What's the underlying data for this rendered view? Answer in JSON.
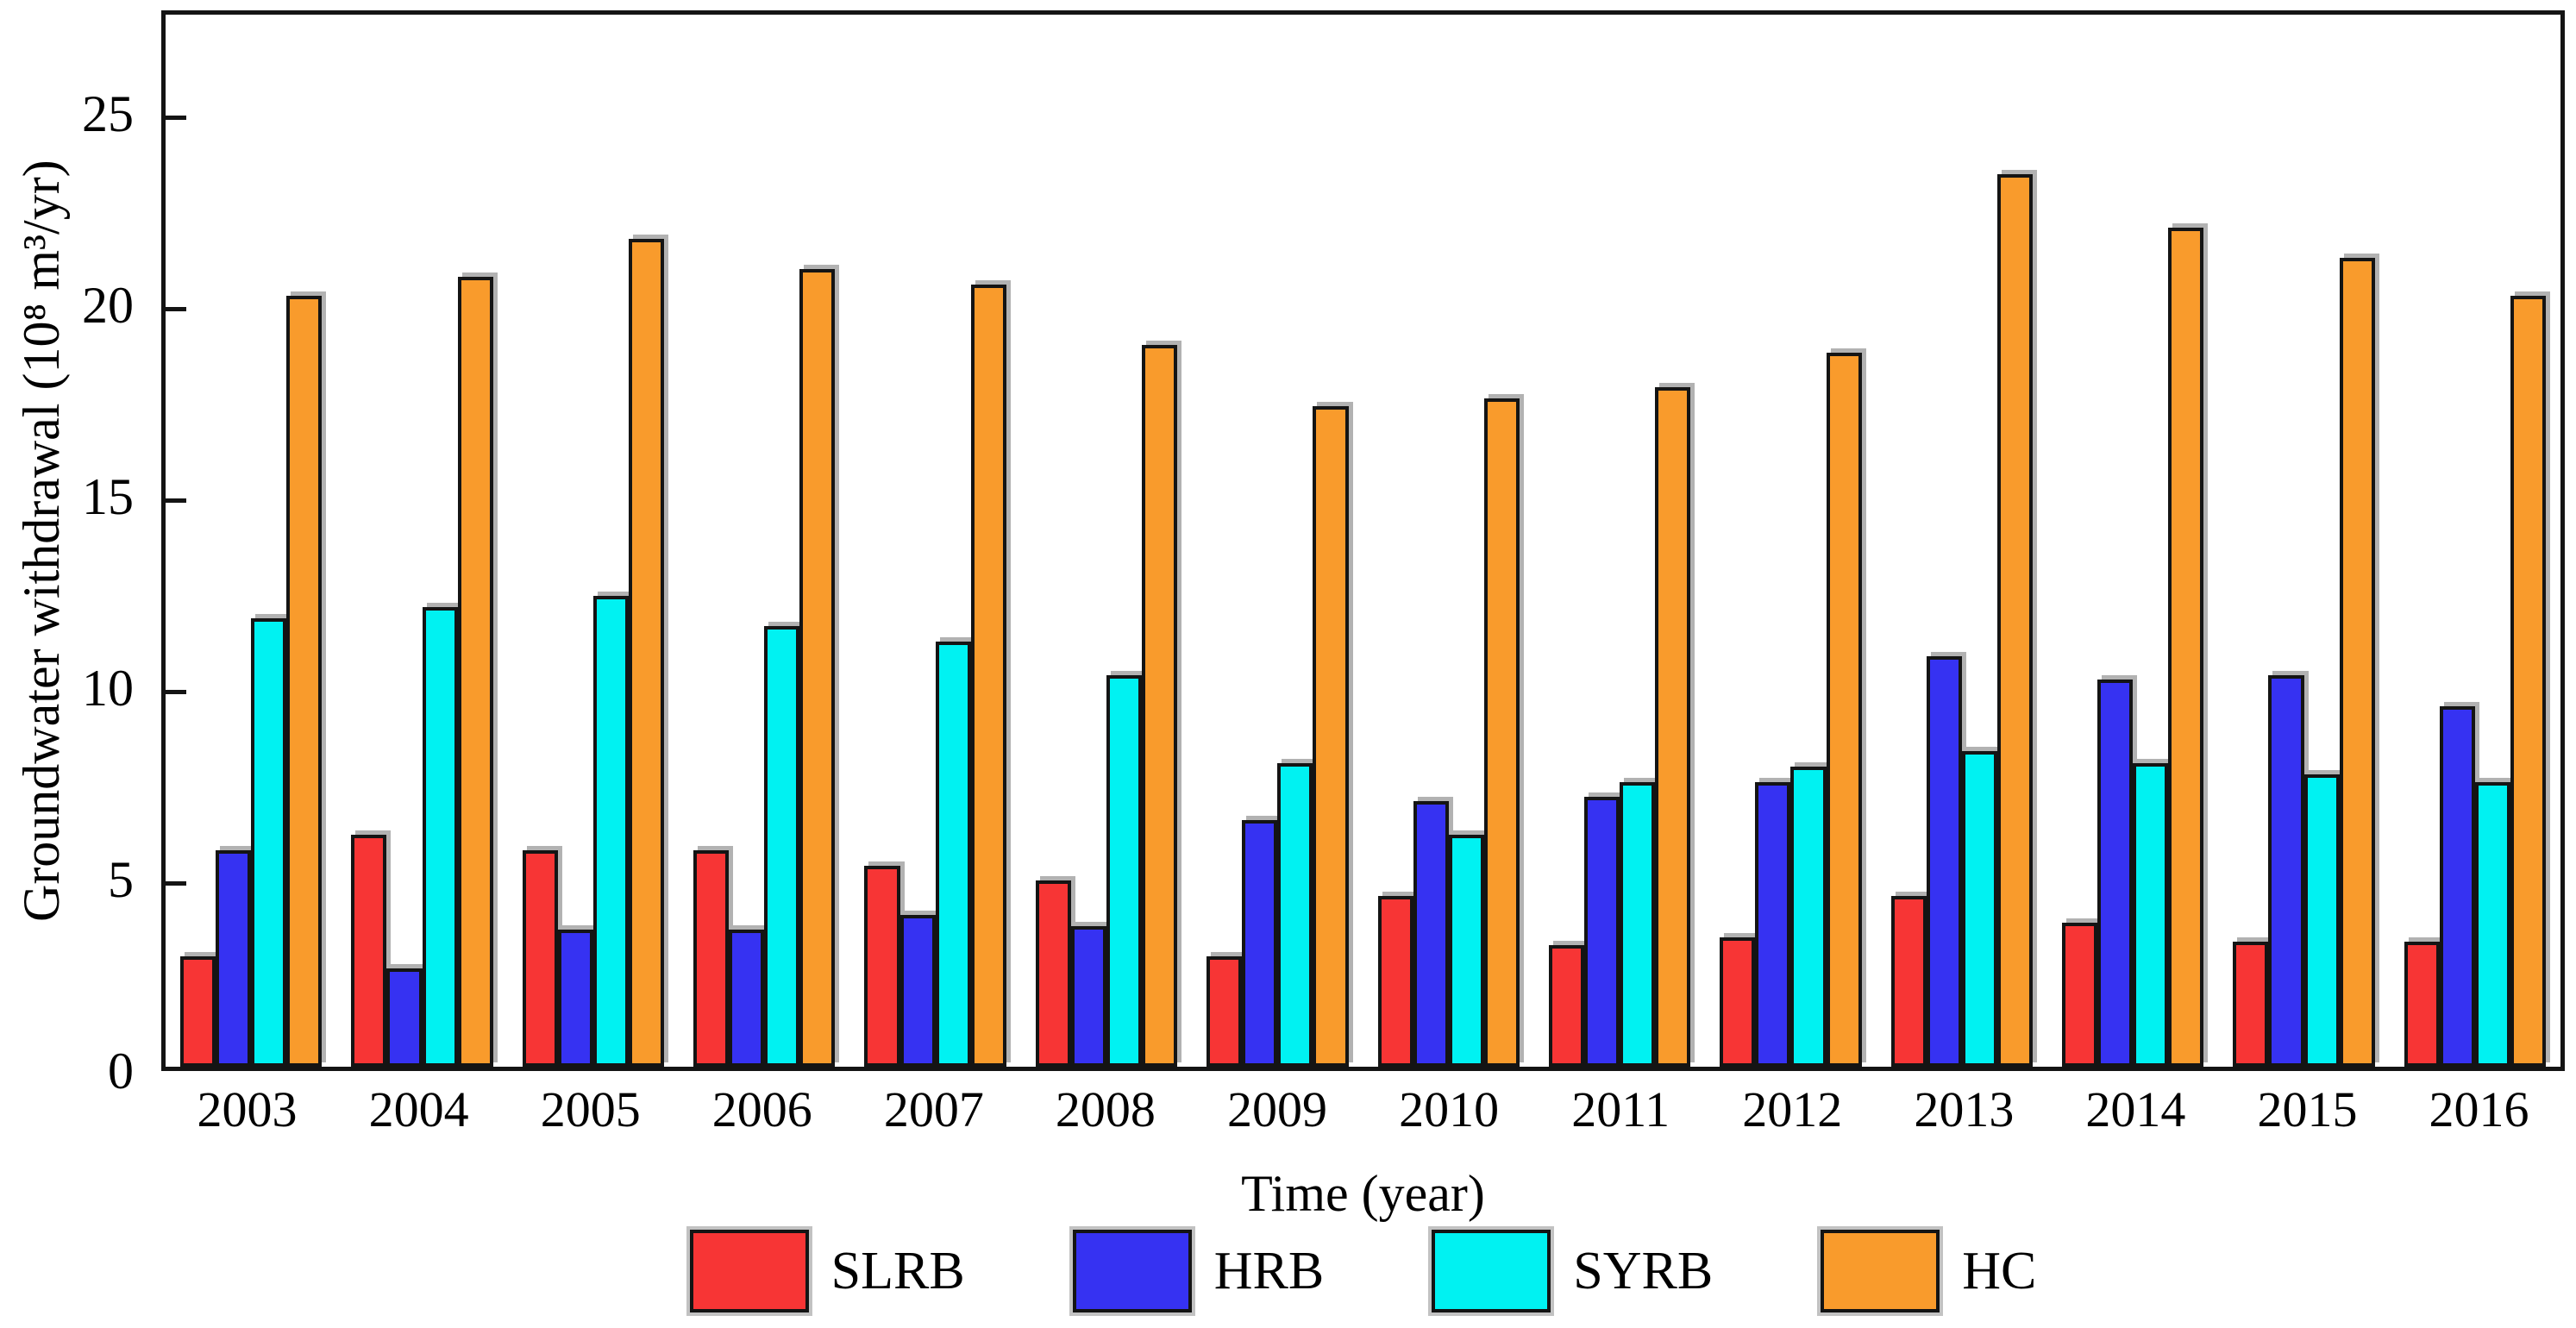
{
  "chart_data": {
    "type": "bar",
    "title": "",
    "xlabel": "Time (year)",
    "ylabel": "Groundwater withdrawal (10⁸ m³/yr)",
    "ylim": [
      0,
      27.7
    ],
    "yticks": [
      0,
      5,
      10,
      15,
      20,
      25
    ],
    "grid": false,
    "legend_position": "bottom",
    "categories": [
      "2003",
      "2004",
      "2005",
      "2006",
      "2007",
      "2008",
      "2009",
      "2010",
      "2011",
      "2012",
      "2013",
      "2014",
      "2015",
      "2016"
    ],
    "series": [
      {
        "name": "SLRB",
        "color": "#f73535",
        "values": [
          2.9,
          6.1,
          5.7,
          5.7,
          5.3,
          4.9,
          2.9,
          4.5,
          3.2,
          3.4,
          4.5,
          3.8,
          3.3,
          3.3
        ]
      },
      {
        "name": "HRB",
        "color": "#3632f2",
        "values": [
          5.7,
          2.6,
          3.6,
          3.6,
          4.0,
          3.7,
          6.5,
          7.0,
          7.1,
          7.5,
          10.8,
          10.2,
          10.3,
          9.5
        ]
      },
      {
        "name": "SYRB",
        "color": "#00f2f2",
        "values": [
          11.8,
          12.1,
          12.4,
          11.6,
          11.2,
          10.3,
          8.0,
          6.1,
          7.5,
          7.9,
          8.3,
          8.0,
          7.7,
          7.5
        ]
      },
      {
        "name": "HC",
        "color": "#f99b2c",
        "values": [
          20.3,
          20.8,
          21.8,
          21.0,
          20.6,
          19.0,
          17.4,
          17.6,
          17.9,
          18.8,
          23.5,
          22.1,
          21.3,
          20.3
        ]
      }
    ]
  }
}
